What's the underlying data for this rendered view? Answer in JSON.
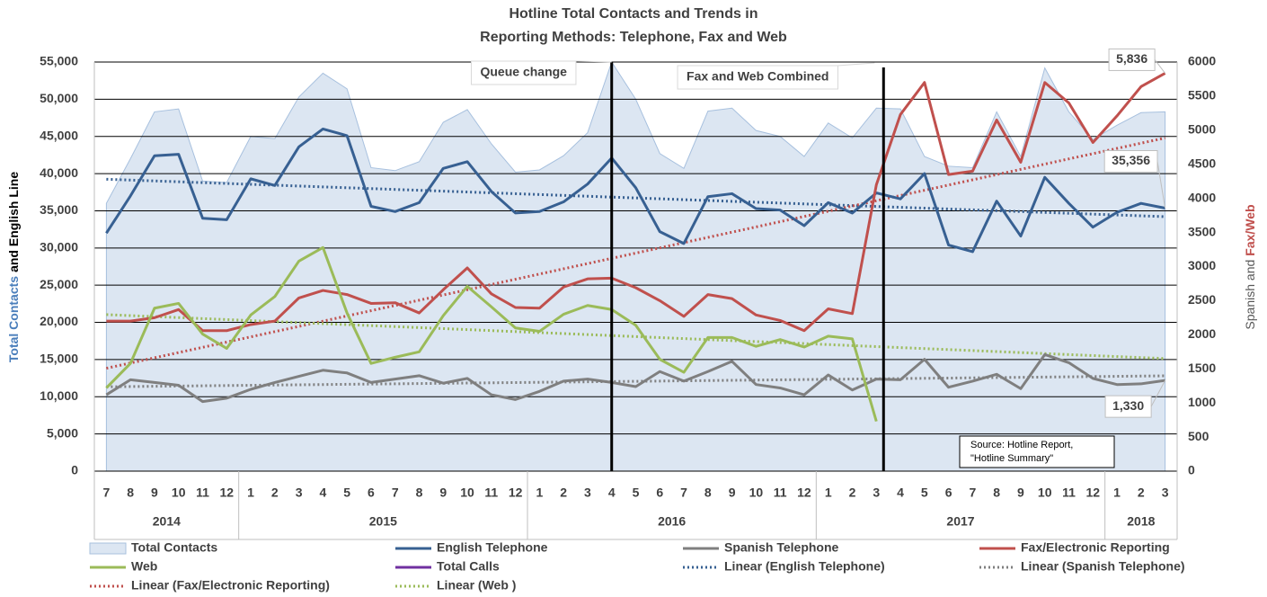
{
  "chart_data": {
    "type": "line",
    "title": [
      "Hotline Total Contacts and Trends in",
      "Reporting Methods: Telephone, Fax and Web"
    ],
    "ylabel": [
      {
        "text": "Total Contacts",
        "color": "#4a7ebb"
      },
      {
        "text": "and English Line",
        "color": "#000000"
      }
    ],
    "y2label": [
      {
        "text": "Spanish and",
        "color": "#595959"
      },
      {
        "text": "Fax/Web",
        "color": "#c0504d"
      }
    ],
    "categories": [
      "7",
      "8",
      "9",
      "10",
      "11",
      "12",
      "1",
      "2",
      "3",
      "4",
      "5",
      "6",
      "7",
      "8",
      "9",
      "10",
      "11",
      "12",
      "1",
      "2",
      "3",
      "4",
      "5",
      "6",
      "7",
      "8",
      "9",
      "10",
      "11",
      "12",
      "1",
      "2",
      "3",
      "4",
      "5",
      "6",
      "7",
      "8",
      "9",
      "10",
      "11",
      "12",
      "1",
      "2",
      "3"
    ],
    "years": [
      {
        "label": "2014",
        "months": 6
      },
      {
        "label": "2015",
        "months": 12
      },
      {
        "label": "2016",
        "months": 12
      },
      {
        "label": "2017",
        "months": 12
      },
      {
        "label": "2018",
        "months": 3
      }
    ],
    "ylim": [
      0,
      55000
    ],
    "yticks": [
      0,
      {
        "value": 5000,
        "label": "5,000"
      },
      {
        "value": 10000,
        "label": "10,000"
      },
      {
        "value": 15000,
        "label": "15,000"
      },
      {
        "value": 20000,
        "label": "20,000"
      },
      {
        "value": 25000,
        "label": "25,000"
      },
      {
        "value": 30000,
        "label": "30,000"
      },
      {
        "value": 35000,
        "label": "35,000"
      },
      {
        "value": 40000,
        "label": "40,000"
      },
      {
        "value": 45000,
        "label": "45,000"
      },
      {
        "value": 50000,
        "label": "50,000"
      },
      {
        "value": 55000,
        "label": "55,000"
      }
    ],
    "y2lim": [
      0,
      6000
    ],
    "y2ticks": [
      0,
      500,
      1000,
      1500,
      2000,
      2500,
      3000,
      3500,
      4000,
      4500,
      5000,
      5500,
      6000
    ],
    "grid": true,
    "series": [
      {
        "name": "Total Contacts",
        "type": "area",
        "axis": "y",
        "color": "#dce6f2",
        "edge": "#a7c0de",
        "values": [
          36000,
          42000,
          48300,
          48700,
          39000,
          38800,
          45000,
          44700,
          50300,
          53500,
          51400,
          40800,
          40400,
          41600,
          46900,
          48600,
          44000,
          40200,
          40500,
          42400,
          45500,
          55000,
          50000,
          42700,
          40700,
          48400,
          48800,
          45800,
          45000,
          42300,
          46800,
          44800,
          48800,
          48700,
          42300,
          41000,
          40800,
          48300,
          42300,
          54200,
          48300,
          44600,
          46500,
          48200,
          48300
        ]
      },
      {
        "name": "English Telephone",
        "type": "line",
        "axis": "y",
        "color": "#376092",
        "values": [
          32000,
          37000,
          42400,
          42600,
          34000,
          33800,
          39300,
          38400,
          43600,
          46000,
          45100,
          35600,
          34900,
          36100,
          40700,
          41600,
          37600,
          34700,
          34900,
          36200,
          38600,
          42100,
          38100,
          32200,
          30600,
          36900,
          37300,
          35300,
          35100,
          33000,
          36100,
          34700,
          37400,
          36600,
          40000,
          30400,
          29500,
          36300,
          31600,
          39500,
          36000,
          32800,
          34800,
          36000,
          35356
        ],
        "value_labels": [
          null,
          null,
          null,
          null,
          null,
          null,
          null,
          null,
          null,
          null,
          null,
          null,
          null,
          null,
          null,
          null,
          null,
          null,
          null,
          null,
          null,
          null,
          null,
          null,
          null,
          null,
          null,
          null,
          null,
          null,
          null,
          null,
          null,
          null,
          null,
          null,
          null,
          null,
          null,
          null,
          null,
          null,
          null,
          null,
          "35,356"
        ],
        "trendline": {
          "name": "Linear (English Telephone)",
          "color": "#376092"
        }
      },
      {
        "name": "Spanish Telephone",
        "type": "line",
        "axis": "y2",
        "color": "#7f7f7f",
        "values": [
          1120,
          1340,
          1300,
          1260,
          1020,
          1070,
          1200,
          1300,
          1390,
          1480,
          1440,
          1300,
          1350,
          1400,
          1290,
          1360,
          1120,
          1050,
          1170,
          1320,
          1350,
          1300,
          1240,
          1460,
          1320,
          1460,
          1610,
          1270,
          1220,
          1120,
          1410,
          1190,
          1350,
          1340,
          1640,
          1230,
          1320,
          1420,
          1210,
          1710,
          1590,
          1360,
          1270,
          1280,
          1330
        ],
        "value_labels": [
          null,
          null,
          null,
          null,
          null,
          null,
          null,
          null,
          null,
          null,
          null,
          null,
          null,
          null,
          null,
          null,
          null,
          null,
          null,
          null,
          null,
          null,
          null,
          null,
          null,
          null,
          null,
          null,
          null,
          null,
          null,
          null,
          null,
          null,
          null,
          null,
          null,
          null,
          null,
          null,
          null,
          null,
          null,
          null,
          "1,330"
        ],
        "trendline": {
          "name": "Linear (Spanish Telephone)",
          "color": "#7f7f7f"
        }
      },
      {
        "name": "Fax/Electronic Reporting",
        "type": "line",
        "axis": "y2",
        "color": "#c0504d",
        "values": [
          2200,
          2200,
          2250,
          2370,
          2060,
          2060,
          2150,
          2200,
          2540,
          2650,
          2590,
          2460,
          2470,
          2320,
          2660,
          2980,
          2600,
          2400,
          2390,
          2700,
          2820,
          2830,
          2690,
          2500,
          2270,
          2590,
          2530,
          2290,
          2210,
          2060,
          2380,
          2310,
          4200,
          5230,
          5700,
          4350,
          4400,
          5150,
          4530,
          5700,
          5400,
          4820,
          5210,
          5640,
          5836
        ],
        "value_labels": [
          null,
          null,
          null,
          null,
          null,
          null,
          null,
          null,
          null,
          null,
          null,
          null,
          null,
          null,
          null,
          null,
          null,
          null,
          null,
          null,
          null,
          null,
          null,
          null,
          null,
          null,
          null,
          null,
          null,
          null,
          null,
          null,
          null,
          null,
          null,
          null,
          null,
          null,
          null,
          null,
          null,
          null,
          null,
          null,
          "5,836"
        ],
        "trendline": {
          "name": "Linear (Fax/Electronic Reporting)",
          "color": "#c0504d"
        }
      },
      {
        "name": "Web",
        "type": "line",
        "axis": "y2",
        "color": "#9bbb59",
        "values": [
          1220,
          1580,
          2390,
          2460,
          2010,
          1800,
          2290,
          2560,
          3080,
          3280,
          2320,
          1580,
          1670,
          1750,
          2280,
          2710,
          2410,
          2100,
          2050,
          2300,
          2430,
          2370,
          2140,
          1640,
          1450,
          1960,
          1960,
          1830,
          1930,
          1820,
          1980,
          1940,
          730,
          null,
          null,
          null,
          null,
          null,
          null,
          null,
          null,
          null,
          null,
          null,
          null
        ],
        "trendline": {
          "name": "Linear (Web )",
          "color": "#9bbb59"
        }
      },
      {
        "name": "Total Calls",
        "type": "line",
        "axis": "y",
        "color": "#7030a0",
        "values": [
          null,
          null,
          null,
          null,
          null,
          null,
          null,
          null,
          null,
          null,
          null,
          null,
          null,
          null,
          null,
          null,
          null,
          null,
          null,
          null,
          null,
          null,
          null,
          null,
          null,
          null,
          null,
          null,
          null,
          null,
          null,
          null,
          null,
          null,
          null,
          null,
          null,
          null,
          null,
          null,
          null,
          null,
          null,
          null,
          null
        ]
      }
    ],
    "annotations": [
      {
        "text": "Queue change",
        "category": 21
      },
      {
        "text": "Fax and Web Combined",
        "category": 32
      }
    ],
    "source": [
      "Source:  Hotline Report,",
      "\"Hotline Summary\""
    ]
  }
}
